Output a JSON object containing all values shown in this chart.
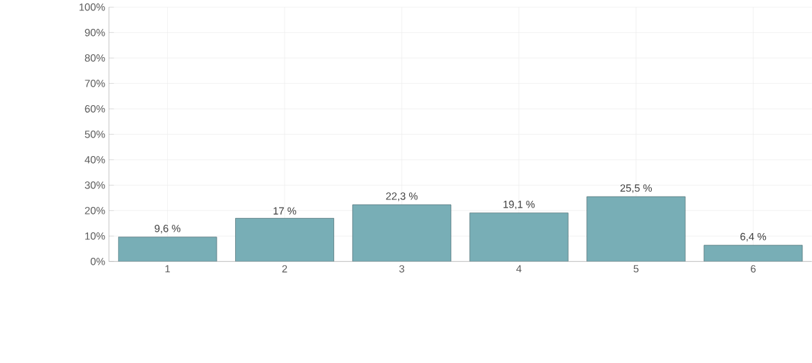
{
  "chart_data": {
    "type": "bar",
    "categories": [
      "1",
      "2",
      "3",
      "4",
      "5",
      "6"
    ],
    "values": [
      9.6,
      17,
      22.3,
      19.1,
      25.5,
      6.4
    ],
    "value_labels": [
      "9,6 %",
      "17 %",
      "22,3 %",
      "19,1 %",
      "25,5 %",
      "6,4 %"
    ],
    "color": "#78aeb6",
    "ylim": [
      0,
      100
    ],
    "yticks": [
      {
        "value": 0,
        "label": "0%"
      },
      {
        "value": 10,
        "label": "10%"
      },
      {
        "value": 20,
        "label": "20%"
      },
      {
        "value": 30,
        "label": "30%"
      },
      {
        "value": 40,
        "label": "40%"
      },
      {
        "value": 50,
        "label": "50%"
      },
      {
        "value": 60,
        "label": "60%"
      },
      {
        "value": 70,
        "label": "70%"
      },
      {
        "value": 80,
        "label": "80%"
      },
      {
        "value": 90,
        "label": "90%"
      },
      {
        "value": 100,
        "label": "100%"
      }
    ],
    "grid": true
  }
}
